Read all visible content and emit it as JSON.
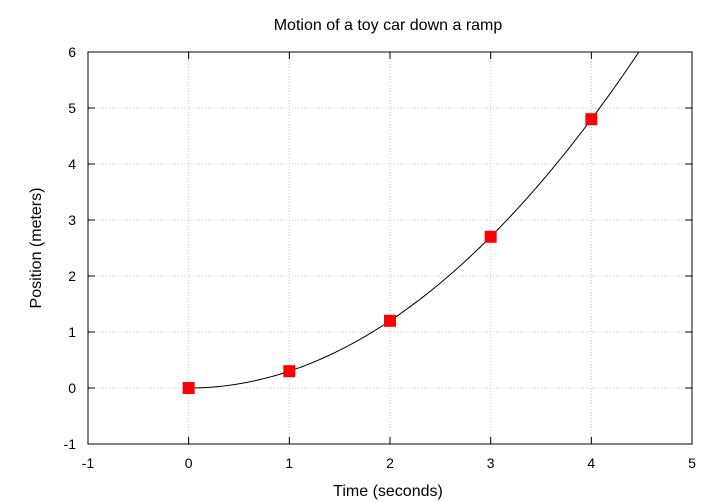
{
  "chart_data": {
    "type": "scatter",
    "title": "Motion of a toy car down a ramp",
    "xlabel": "Time (seconds)",
    "ylabel": "Position (meters)",
    "xlim": [
      -1,
      5
    ],
    "ylim": [
      -1,
      6
    ],
    "xticks": [
      "-1",
      "0",
      "1",
      "2",
      "3",
      "4",
      "5"
    ],
    "yticks": [
      "-1",
      "0",
      "1",
      "2",
      "3",
      "4",
      "5",
      "6"
    ],
    "grid": true,
    "legend": "none",
    "series": [
      {
        "kind": "points",
        "marker": "square",
        "color": "#ff0000",
        "x": [
          0,
          1,
          2,
          3,
          4
        ],
        "y": [
          0,
          0.3,
          1.2,
          2.7,
          4.8
        ]
      },
      {
        "kind": "fit-curve",
        "model": "quadratic",
        "coefficient": 0.3,
        "color": "#000000"
      }
    ]
  }
}
